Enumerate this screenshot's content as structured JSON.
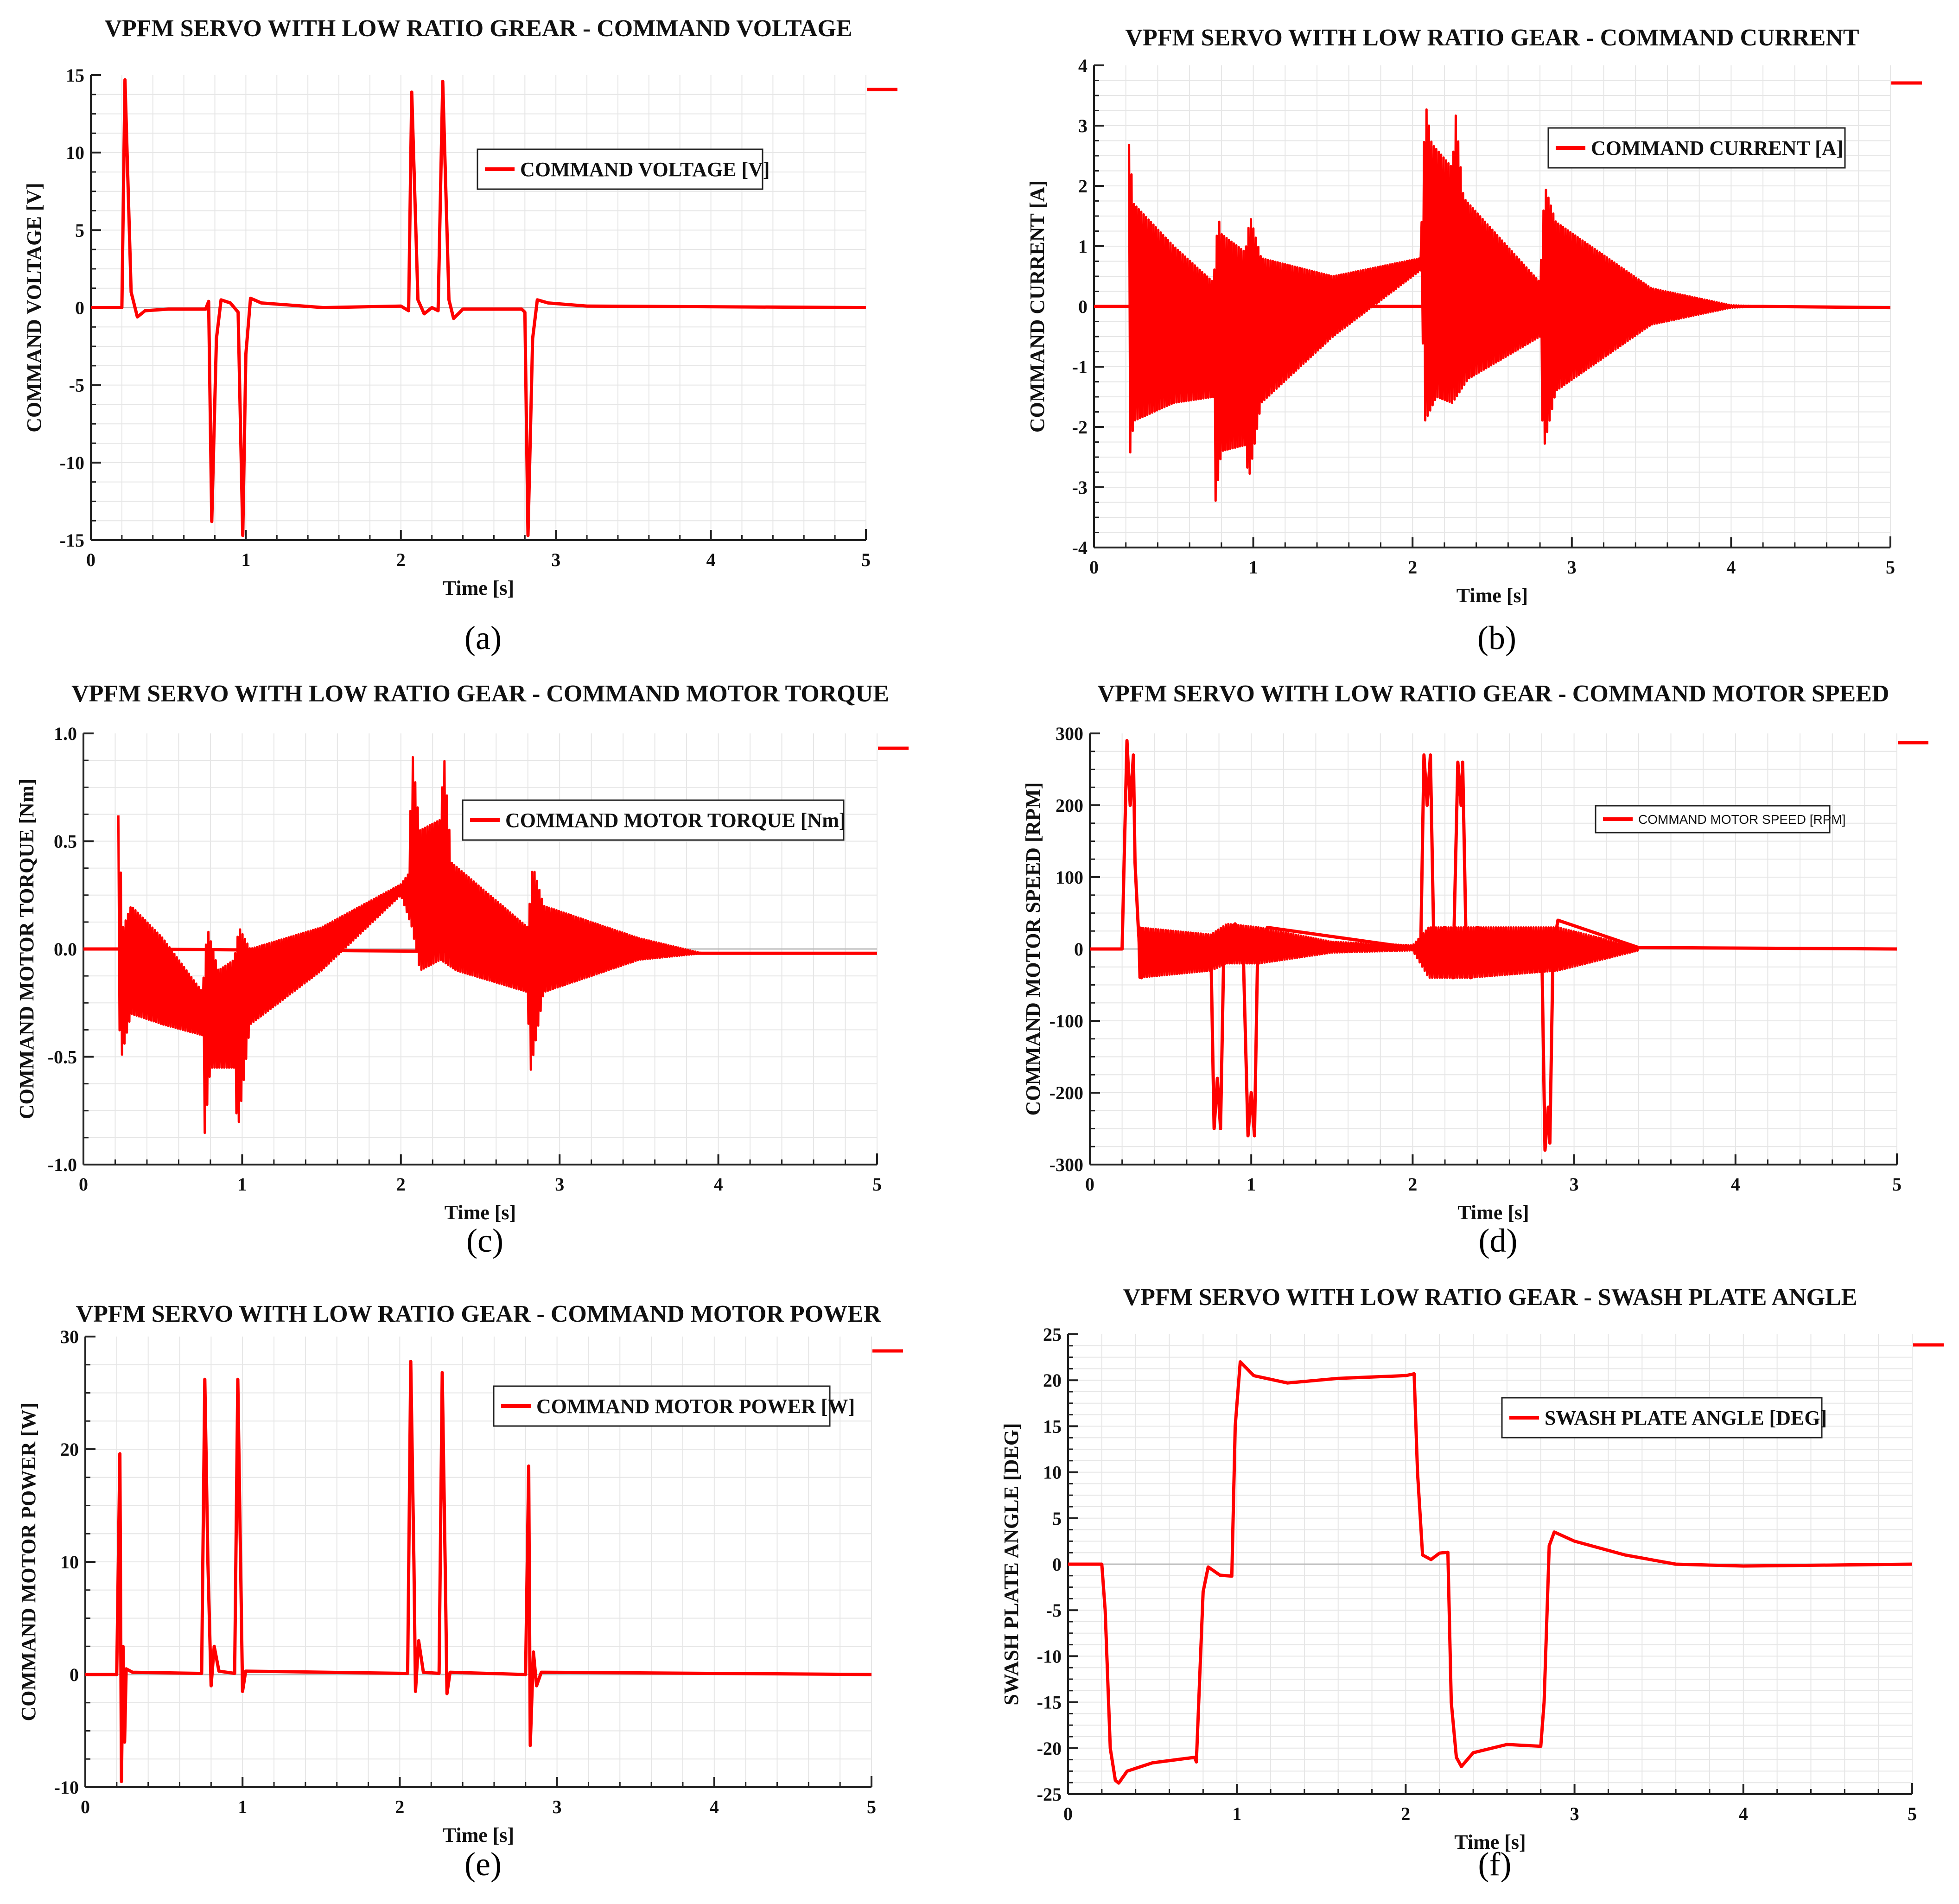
{
  "figure": {
    "panels": [
      "(a)",
      "(b)",
      "(c)",
      "(d)",
      "(e)",
      "(f)"
    ]
  },
  "style": {
    "series_color": "#ff0000",
    "grid_color": "#e6e6e6",
    "axis_color": "#222222"
  },
  "chart_data": [
    {
      "id": "a",
      "caption": "(a)",
      "type": "line",
      "title": "VPFM SERVO WITH LOW RATIO GREAR - COMMAND VOLTAGE",
      "xlabel": "Time [s]",
      "ylabel": "COMMAND VOLTAGE [V]",
      "legend": "COMMAND VOLTAGE [V]",
      "xlim": [
        0,
        5
      ],
      "ylim": [
        -15,
        15
      ],
      "xticks": [
        0,
        1,
        2,
        3,
        4,
        5
      ],
      "yticks": [
        -15,
        -10,
        -5,
        0,
        5,
        10,
        15
      ],
      "tick_labels_y": [
        "-15",
        "-10",
        "-5",
        "0",
        "5",
        "10",
        "15"
      ],
      "osc": null,
      "points": [
        [
          0,
          0
        ],
        [
          0.2,
          0
        ],
        [
          0.22,
          14.7
        ],
        [
          0.26,
          1
        ],
        [
          0.3,
          -0.6
        ],
        [
          0.35,
          -0.2
        ],
        [
          0.5,
          -0.1
        ],
        [
          0.74,
          -0.1
        ],
        [
          0.76,
          0.4
        ],
        [
          0.78,
          -13.8
        ],
        [
          0.81,
          -2
        ],
        [
          0.84,
          0.5
        ],
        [
          0.9,
          0.3
        ],
        [
          0.95,
          -0.3
        ],
        [
          0.98,
          -14.7
        ],
        [
          1.0,
          -3
        ],
        [
          1.03,
          0.6
        ],
        [
          1.1,
          0.3
        ],
        [
          1.5,
          0
        ],
        [
          2.0,
          0.1
        ],
        [
          2.05,
          -0.2
        ],
        [
          2.07,
          13.9
        ],
        [
          2.11,
          0.5
        ],
        [
          2.15,
          -0.4
        ],
        [
          2.2,
          0
        ],
        [
          2.24,
          -0.2
        ],
        [
          2.27,
          14.6
        ],
        [
          2.31,
          0.5
        ],
        [
          2.34,
          -0.7
        ],
        [
          2.4,
          -0.1
        ],
        [
          2.78,
          -0.1
        ],
        [
          2.8,
          -0.3
        ],
        [
          2.82,
          -14.7
        ],
        [
          2.85,
          -2
        ],
        [
          2.88,
          0.5
        ],
        [
          2.95,
          0.3
        ],
        [
          3.2,
          0.1
        ],
        [
          5,
          0
        ]
      ]
    },
    {
      "id": "b",
      "caption": "(b)",
      "type": "line",
      "title": "VPFM SERVO WITH LOW RATIO GEAR - COMMAND CURRENT",
      "xlabel": "Time [s]",
      "ylabel": "COMMAND CURRENT [A]",
      "legend": "COMMAND CURRENT [A]",
      "xlim": [
        0,
        5
      ],
      "ylim": [
        -4,
        4
      ],
      "xticks": [
        0,
        1,
        2,
        3,
        4,
        5
      ],
      "yticks": [
        -4,
        -3,
        -2,
        -1,
        0,
        1,
        2,
        3,
        4
      ],
      "tick_labels_y": [
        "-4",
        "-3",
        "-2",
        "-1",
        "0",
        "1",
        "2",
        "3",
        "4"
      ],
      "osc": {
        "start": 0.22,
        "end": 4.2,
        "cycles": 260,
        "upper": [
          [
            0.22,
            2.7
          ],
          [
            0.25,
            1.7
          ],
          [
            0.5,
            1.0
          ],
          [
            0.75,
            0.4
          ],
          [
            0.78,
            1.5
          ],
          [
            0.8,
            1.2
          ],
          [
            0.95,
            0.9
          ],
          [
            0.98,
            1.5
          ],
          [
            1.05,
            0.8
          ],
          [
            1.5,
            0.5
          ],
          [
            2.05,
            0.8
          ],
          [
            2.08,
            3.4
          ],
          [
            2.12,
            2.7
          ],
          [
            2.25,
            2.3
          ],
          [
            2.27,
            3.2
          ],
          [
            2.32,
            1.8
          ],
          [
            2.8,
            0.4
          ],
          [
            2.83,
            2.0
          ],
          [
            2.9,
            1.4
          ],
          [
            3.5,
            0.3
          ],
          [
            4.0,
            0.02
          ],
          [
            4.2,
            0
          ]
        ],
        "lower": [
          [
            0.22,
            -2.6
          ],
          [
            0.25,
            -1.9
          ],
          [
            0.5,
            -1.6
          ],
          [
            0.75,
            -1.5
          ],
          [
            0.76,
            -3.3
          ],
          [
            0.8,
            -2.4
          ],
          [
            0.95,
            -2.3
          ],
          [
            0.97,
            -2.9
          ],
          [
            1.05,
            -1.6
          ],
          [
            1.5,
            -0.5
          ],
          [
            2.05,
            0.6
          ],
          [
            2.08,
            -1.9
          ],
          [
            2.15,
            -1.5
          ],
          [
            2.25,
            -1.6
          ],
          [
            2.35,
            -1.2
          ],
          [
            2.8,
            -0.5
          ],
          [
            2.82,
            -2.4
          ],
          [
            2.9,
            -1.4
          ],
          [
            3.5,
            -0.3
          ],
          [
            4.0,
            -0.02
          ],
          [
            4.2,
            0
          ]
        ]
      },
      "points": [
        [
          0,
          0
        ],
        [
          0.2,
          0
        ],
        [
          4.2,
          0
        ],
        [
          5,
          -0.02
        ]
      ]
    },
    {
      "id": "c",
      "caption": "(c)",
      "type": "line",
      "title": "VPFM SERVO WITH LOW RATIO GEAR - COMMAND MOTOR TORQUE",
      "xlabel": "Time [s]",
      "ylabel": "COMMAND MOTOR TORQUE [Nm]",
      "legend": "COMMAND MOTOR TORQUE [Nm]",
      "xlim": [
        0,
        5
      ],
      "ylim": [
        -1.0,
        1.0
      ],
      "xticks": [
        0,
        1,
        2,
        3,
        4,
        5
      ],
      "yticks": [
        -1.0,
        -0.5,
        0.0,
        0.5,
        1.0
      ],
      "tick_labels_y": [
        "-1.0",
        "-0.5",
        "0.0",
        "0.5",
        "1.0"
      ],
      "osc": {
        "start": 0.22,
        "end": 3.9,
        "cycles": 240,
        "upper": [
          [
            0.22,
            0.62
          ],
          [
            0.25,
            0.1
          ],
          [
            0.3,
            0.2
          ],
          [
            0.5,
            0.05
          ],
          [
            0.75,
            -0.2
          ],
          [
            0.78,
            0.1
          ],
          [
            0.85,
            -0.1
          ],
          [
            0.95,
            -0.05
          ],
          [
            0.98,
            0.1
          ],
          [
            1.05,
            0.0
          ],
          [
            1.5,
            0.1
          ],
          [
            2.0,
            0.3
          ],
          [
            2.05,
            0.35
          ],
          [
            2.07,
            0.93
          ],
          [
            2.12,
            0.55
          ],
          [
            2.25,
            0.6
          ],
          [
            2.27,
            0.92
          ],
          [
            2.32,
            0.4
          ],
          [
            2.8,
            0.1
          ],
          [
            2.83,
            0.39
          ],
          [
            2.9,
            0.2
          ],
          [
            3.5,
            0.05
          ],
          [
            3.9,
            -0.02
          ]
        ],
        "lower": [
          [
            0.22,
            -0.3
          ],
          [
            0.24,
            -0.5
          ],
          [
            0.3,
            -0.3
          ],
          [
            0.5,
            -0.35
          ],
          [
            0.75,
            -0.4
          ],
          [
            0.76,
            -0.89
          ],
          [
            0.8,
            -0.55
          ],
          [
            0.95,
            -0.55
          ],
          [
            0.97,
            -0.86
          ],
          [
            1.05,
            -0.35
          ],
          [
            1.5,
            -0.1
          ],
          [
            2.0,
            0.25
          ],
          [
            2.07,
            0.1
          ],
          [
            2.12,
            -0.1
          ],
          [
            2.25,
            -0.05
          ],
          [
            2.35,
            -0.1
          ],
          [
            2.8,
            -0.2
          ],
          [
            2.81,
            -0.6
          ],
          [
            2.9,
            -0.2
          ],
          [
            3.5,
            -0.05
          ],
          [
            3.9,
            -0.02
          ]
        ]
      },
      "points": [
        [
          0,
          0
        ],
        [
          0.22,
          0
        ],
        [
          3.9,
          -0.02
        ],
        [
          5,
          -0.02
        ]
      ]
    },
    {
      "id": "d",
      "caption": "(d)",
      "type": "line",
      "title": "VPFM SERVO WITH LOW RATIO GEAR - COMMAND MOTOR SPEED",
      "xlabel": "Time [s]",
      "ylabel": "COMMAND MOTOR SPEED [RPM]",
      "legend": "COMMAND MOTOR SPEED [RPM]",
      "xlim": [
        0,
        5
      ],
      "ylim": [
        -300,
        300
      ],
      "xticks": [
        0,
        1,
        2,
        3,
        4,
        5
      ],
      "yticks": [
        -300,
        -200,
        -100,
        0,
        100,
        200,
        300
      ],
      "tick_labels_y": [
        "-300",
        "-200",
        "-100",
        "0",
        "100",
        "200",
        "300"
      ],
      "osc": {
        "start": 0.3,
        "end": 3.4,
        "cycles": 200,
        "upper": [
          [
            0.3,
            30
          ],
          [
            0.75,
            20
          ],
          [
            0.85,
            35
          ],
          [
            1.05,
            30
          ],
          [
            1.5,
            10
          ],
          [
            2.0,
            5
          ],
          [
            2.1,
            30
          ],
          [
            2.35,
            30
          ],
          [
            2.9,
            30
          ],
          [
            3.4,
            2
          ]
        ],
        "lower": [
          [
            0.3,
            -40
          ],
          [
            0.75,
            -30
          ],
          [
            0.85,
            -20
          ],
          [
            1.05,
            -20
          ],
          [
            1.5,
            -5
          ],
          [
            2.0,
            -2
          ],
          [
            2.1,
            -40
          ],
          [
            2.35,
            -40
          ],
          [
            2.9,
            -30
          ],
          [
            3.4,
            -2
          ]
        ]
      },
      "points": [
        [
          0,
          0
        ],
        [
          0.2,
          0
        ],
        [
          0.23,
          290
        ],
        [
          0.25,
          200
        ],
        [
          0.27,
          270
        ],
        [
          0.28,
          120
        ],
        [
          0.3,
          30
        ],
        [
          0.32,
          -40
        ],
        [
          0.4,
          0
        ],
        [
          0.75,
          0
        ],
        [
          0.77,
          -250
        ],
        [
          0.79,
          -180
        ],
        [
          0.81,
          -250
        ],
        [
          0.83,
          0
        ],
        [
          0.9,
          35
        ],
        [
          0.95,
          0
        ],
        [
          0.98,
          -260
        ],
        [
          1.0,
          -200
        ],
        [
          1.02,
          -260
        ],
        [
          1.04,
          0
        ],
        [
          1.1,
          30
        ],
        [
          2.05,
          0
        ],
        [
          2.07,
          270
        ],
        [
          2.09,
          200
        ],
        [
          2.11,
          270
        ],
        [
          2.13,
          20
        ],
        [
          2.2,
          30
        ],
        [
          2.25,
          -40
        ],
        [
          2.28,
          260
        ],
        [
          2.3,
          200
        ],
        [
          2.31,
          260
        ],
        [
          2.33,
          20
        ],
        [
          2.36,
          -40
        ],
        [
          2.4,
          30
        ],
        [
          2.8,
          0
        ],
        [
          2.82,
          -280
        ],
        [
          2.84,
          -220
        ],
        [
          2.85,
          -270
        ],
        [
          2.87,
          0
        ],
        [
          2.9,
          40
        ],
        [
          3.4,
          2
        ],
        [
          5,
          0
        ]
      ]
    },
    {
      "id": "e",
      "caption": "(e)",
      "type": "line",
      "title": "VPFM SERVO WITH LOW RATIO GEAR - COMMAND MOTOR POWER",
      "xlabel": "Time [s]",
      "ylabel": "COMMAND MOTOR POWER [W]",
      "legend": "COMMAND MOTOR POWER [W]",
      "xlim": [
        0,
        5
      ],
      "ylim": [
        -10,
        30
      ],
      "xticks": [
        0,
        1,
        2,
        3,
        4,
        5
      ],
      "yticks": [
        -10,
        0,
        10,
        20,
        30
      ],
      "tick_labels_y": [
        "-10",
        "0",
        "10",
        "20",
        "30"
      ],
      "osc": null,
      "points": [
        [
          0,
          0
        ],
        [
          0.2,
          0
        ],
        [
          0.22,
          19.6
        ],
        [
          0.23,
          -9.5
        ],
        [
          0.24,
          2.5
        ],
        [
          0.25,
          -6
        ],
        [
          0.26,
          0.5
        ],
        [
          0.3,
          0.2
        ],
        [
          0.74,
          0.1
        ],
        [
          0.76,
          26.2
        ],
        [
          0.78,
          9.8
        ],
        [
          0.8,
          -1
        ],
        [
          0.82,
          2.5
        ],
        [
          0.85,
          0.3
        ],
        [
          0.95,
          0.1
        ],
        [
          0.97,
          26.2
        ],
        [
          0.99,
          7.8
        ],
        [
          1.0,
          -1.5
        ],
        [
          1.02,
          0.3
        ],
        [
          2.05,
          0.1
        ],
        [
          2.07,
          27.8
        ],
        [
          2.09,
          10
        ],
        [
          2.1,
          -1.5
        ],
        [
          2.12,
          3
        ],
        [
          2.15,
          0.2
        ],
        [
          2.25,
          0.1
        ],
        [
          2.27,
          26.8
        ],
        [
          2.29,
          8.5
        ],
        [
          2.3,
          -1.7
        ],
        [
          2.32,
          0.2
        ],
        [
          2.8,
          0
        ],
        [
          2.82,
          18.5
        ],
        [
          2.83,
          -6.3
        ],
        [
          2.85,
          2
        ],
        [
          2.87,
          -1
        ],
        [
          2.9,
          0.2
        ],
        [
          5,
          0
        ]
      ]
    },
    {
      "id": "f",
      "caption": "(f)",
      "type": "line",
      "title": "VPFM SERVO WITH LOW RATIO GEAR - SWASH PLATE ANGLE",
      "xlabel": "Time [s]",
      "ylabel": "SWASH PLATE ANGLE [DEG]",
      "legend": "SWASH PLATE ANGLE [DEG]",
      "xlim": [
        0,
        5
      ],
      "ylim": [
        -25,
        25
      ],
      "xticks": [
        0,
        1,
        2,
        3,
        4,
        5
      ],
      "yticks": [
        -25,
        -20,
        -15,
        -10,
        -5,
        0,
        5,
        10,
        15,
        20,
        25
      ],
      "tick_labels_y": [
        "-25",
        "-20",
        "-15",
        "-10",
        "-5",
        "0",
        "5",
        "10",
        "15",
        "20",
        "25"
      ],
      "osc": null,
      "points": [
        [
          0,
          0
        ],
        [
          0.2,
          0
        ],
        [
          0.22,
          -5
        ],
        [
          0.25,
          -20
        ],
        [
          0.28,
          -23.5
        ],
        [
          0.3,
          -23.8
        ],
        [
          0.35,
          -22.5
        ],
        [
          0.5,
          -21.6
        ],
        [
          0.75,
          -21
        ],
        [
          0.76,
          -21.5
        ],
        [
          0.8,
          -3
        ],
        [
          0.83,
          -0.3
        ],
        [
          0.9,
          -1.2
        ],
        [
          0.97,
          -1.3
        ],
        [
          0.99,
          15
        ],
        [
          1.02,
          22
        ],
        [
          1.1,
          20.5
        ],
        [
          1.3,
          19.7
        ],
        [
          1.6,
          20.2
        ],
        [
          2.0,
          20.5
        ],
        [
          2.05,
          20.7
        ],
        [
          2.07,
          10
        ],
        [
          2.1,
          1
        ],
        [
          2.15,
          0.5
        ],
        [
          2.2,
          1.2
        ],
        [
          2.25,
          1.3
        ],
        [
          2.27,
          -15
        ],
        [
          2.3,
          -21
        ],
        [
          2.33,
          -22
        ],
        [
          2.4,
          -20.5
        ],
        [
          2.6,
          -19.6
        ],
        [
          2.8,
          -19.8
        ],
        [
          2.82,
          -15
        ],
        [
          2.85,
          2
        ],
        [
          2.88,
          3.5
        ],
        [
          3.0,
          2.5
        ],
        [
          3.3,
          1
        ],
        [
          3.6,
          0
        ],
        [
          4.0,
          -0.2
        ],
        [
          5,
          0
        ]
      ]
    }
  ]
}
